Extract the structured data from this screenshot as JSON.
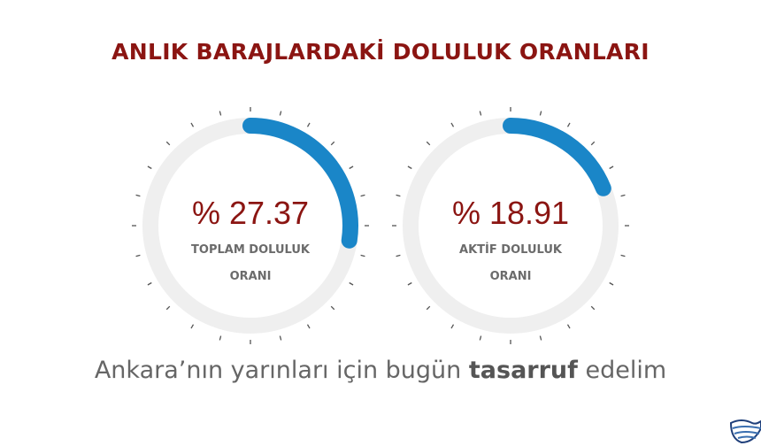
{
  "title": "ANLIK BARAJLARDAKİ DOLULUK ORANLARI",
  "gauges": [
    {
      "value_text": "% 27.37",
      "value": 27.37,
      "label_line1": "TOPLAM DOLULUK",
      "label_line2": "ORANI"
    },
    {
      "value_text": "% 18.91",
      "value": 18.91,
      "label_line1": "AKTİF DOLULUK",
      "label_line2": "ORANI"
    }
  ],
  "slogan": {
    "before": "Ankara’nın yarınları için bugün ",
    "bold": "tasarruf",
    "after": " edelim"
  },
  "colors": {
    "accent": "#1a86c8",
    "track": "#efefef",
    "title": "#8b1512",
    "tick": "#555555"
  },
  "icons": [
    "water-wave-logo-icon"
  ]
}
